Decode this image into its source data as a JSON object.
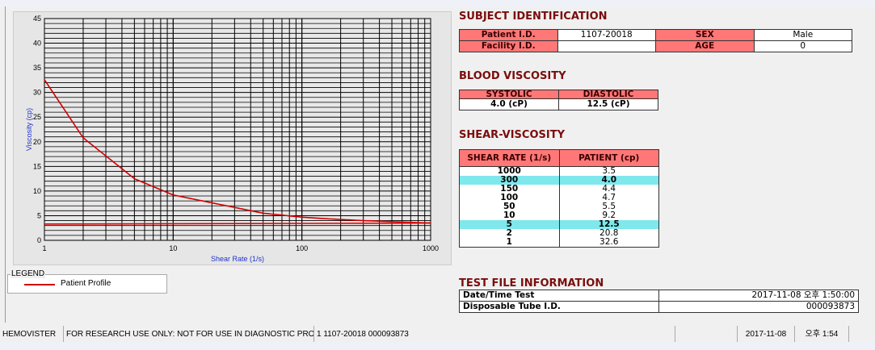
{
  "chart_data": {
    "type": "line",
    "xlabel": "Shear Rate (1/s)",
    "ylabel": "Viscosity (cp)",
    "xscale": "log",
    "xlim": [
      1,
      1000
    ],
    "ylim": [
      0,
      45
    ],
    "xticks": [
      "1",
      "10",
      "100",
      "1000"
    ],
    "yticks": [
      "0",
      "5",
      "10",
      "15",
      "20",
      "25",
      "30",
      "35",
      "40",
      "45"
    ],
    "grid": true,
    "series": [
      {
        "name": "Patient Profile",
        "color": "#d00000",
        "x": [
          1,
          2,
          5,
          10,
          50,
          100,
          150,
          300,
          1000
        ],
        "y": [
          32.6,
          20.8,
          12.5,
          9.2,
          5.5,
          4.7,
          4.4,
          4.0,
          3.5
        ]
      },
      {
        "color": "#e00000",
        "x": [
          1,
          1000
        ],
        "y": [
          3.3,
          3.5
        ]
      }
    ],
    "legend": {
      "title": "LEGEND",
      "placement": "below"
    }
  },
  "subject": {
    "title": "SUBJECT IDENTIFICATION",
    "patient_label": "Patient I.D.",
    "patient_value": "1107-20018",
    "sex_label": "SEX",
    "sex_value": "Male",
    "facility_label": "Facility I.D.",
    "facility_value": "",
    "age_label": "AGE",
    "age_value": "0"
  },
  "blood": {
    "title": "BLOOD VISCOSITY",
    "systolic_label": "SYSTOLIC",
    "diastolic_label": "DIASTOLIC",
    "systolic_value": "4.0 (cP)",
    "diastolic_value": "12.5 (cP)"
  },
  "shear": {
    "title": "SHEAR-VISCOSITY",
    "col1": "SHEAR RATE (1/s)",
    "col2": "PATIENT (cp)",
    "rows": [
      [
        "1000",
        "3.5"
      ],
      [
        "300",
        "4.0"
      ],
      [
        "150",
        "4.4"
      ],
      [
        "100",
        "4.7"
      ],
      [
        "50",
        "5.5"
      ],
      [
        "10",
        "9.2"
      ],
      [
        "5",
        "12.5"
      ],
      [
        "2",
        "20.8"
      ],
      [
        "1",
        "32.6"
      ]
    ],
    "highlight_color": "#7ee8ec"
  },
  "testfile": {
    "title": "TEST FILE INFORMATION",
    "date_label": "Date/Time Test",
    "date_value": "2017-11-08  오후 1:50:00",
    "tube_label": "Disposable Tube I.D.",
    "tube_value": "000093873"
  },
  "status": {
    "app": "HEMOVISTER",
    "notice": "FOR RESEARCH USE ONLY: NOT FOR USE IN DIAGNOSTIC PROCEDURES",
    "record": "1  1107-20018  000093873",
    "empty": "",
    "date": "2017-11-08",
    "time": "오후 1:54"
  }
}
